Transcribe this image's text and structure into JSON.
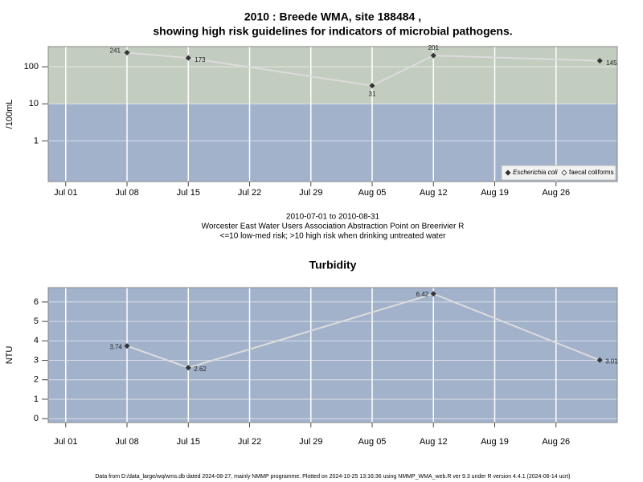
{
  "chart_data": [
    {
      "type": "line",
      "title": [
        "2010 : Breede WMA, site 188484 ,",
        "showing high risk guidelines for indicators of microbial pathogens."
      ],
      "y_label": "/100mL",
      "caption": [
        "2010-07-01 to 2010-08-31",
        "Worcester East Water Users Association Abstraction Point on Breerivier R",
        "<=10 low-med risk; >10 high risk when drinking untreated water"
      ],
      "x": [
        "2010-07-08",
        "2010-07-15",
        "2010-08-05",
        "2010-08-12",
        "2010-08-31"
      ],
      "series": [
        {
          "name": "Escherichia coli",
          "color": "#333333",
          "values": [
            241,
            173,
            31,
            201,
            145
          ]
        },
        {
          "name": "faecal coliforms",
          "color": "#333333",
          "values": [
            null,
            null,
            null,
            null,
            null
          ]
        }
      ],
      "line_color": "#dcdcdc",
      "xlim": [
        "2010-06-29",
        "2010-09-02"
      ],
      "xticks": [
        {
          "value": "2010-07-01",
          "label": "Jul 01"
        },
        {
          "value": "2010-07-08",
          "label": "Jul 08"
        },
        {
          "value": "2010-07-15",
          "label": "Jul 15"
        },
        {
          "value": "2010-07-22",
          "label": "Jul 22"
        },
        {
          "value": "2010-07-29",
          "label": "Jul 29"
        },
        {
          "value": "2010-08-05",
          "label": "Aug 05"
        },
        {
          "value": "2010-08-12",
          "label": "Aug 12"
        },
        {
          "value": "2010-08-19",
          "label": "Aug 19"
        },
        {
          "value": "2010-08-26",
          "label": "Aug 26"
        }
      ],
      "ylim": [
        0.08,
        350
      ],
      "yticks": [
        1,
        10,
        100
      ],
      "log_y": true,
      "grid": true,
      "background": "#a2b2cb",
      "bands": [
        {
          "from": 10,
          "color": "#c2ccbf"
        }
      ],
      "legend": "bottom-right"
    },
    {
      "type": "line",
      "title": [
        "Turbidity"
      ],
      "y_label": "NTU",
      "x": [
        "2010-07-08",
        "2010-07-15",
        "2010-08-12",
        "2010-08-31"
      ],
      "series": [
        {
          "name": null,
          "color": "#333333",
          "values": [
            3.74,
            2.62,
            6.42,
            3.01
          ]
        }
      ],
      "line_color": "#dcdcdc",
      "xlim": [
        "2010-06-29",
        "2010-09-02"
      ],
      "xticks": [
        {
          "value": "2010-07-01",
          "label": "Jul 01"
        },
        {
          "value": "2010-07-08",
          "label": "Jul 08"
        },
        {
          "value": "2010-07-15",
          "label": "Jul 15"
        },
        {
          "value": "2010-07-22",
          "label": "Jul 22"
        },
        {
          "value": "2010-07-29",
          "label": "Jul 29"
        },
        {
          "value": "2010-08-05",
          "label": "Aug 05"
        },
        {
          "value": "2010-08-12",
          "label": "Aug 12"
        },
        {
          "value": "2010-08-19",
          "label": "Aug 19"
        },
        {
          "value": "2010-08-26",
          "label": "Aug 26"
        }
      ],
      "ylim": [
        -0.2,
        6.74
      ],
      "yticks": [
        0,
        1,
        2,
        3,
        4,
        5,
        6
      ],
      "log_y": false,
      "grid": true,
      "background": "#a2b2cb"
    }
  ],
  "footer": "Data from D:/data_large/wq/wms.db dated 2024-08-27, mainly NMMP programme. Plotted on 2024-10-25 13:16:36 using NMMP_WMA_web.R ver 9.3 under R version 4.4.1 (2024-06-14 ucrt)"
}
